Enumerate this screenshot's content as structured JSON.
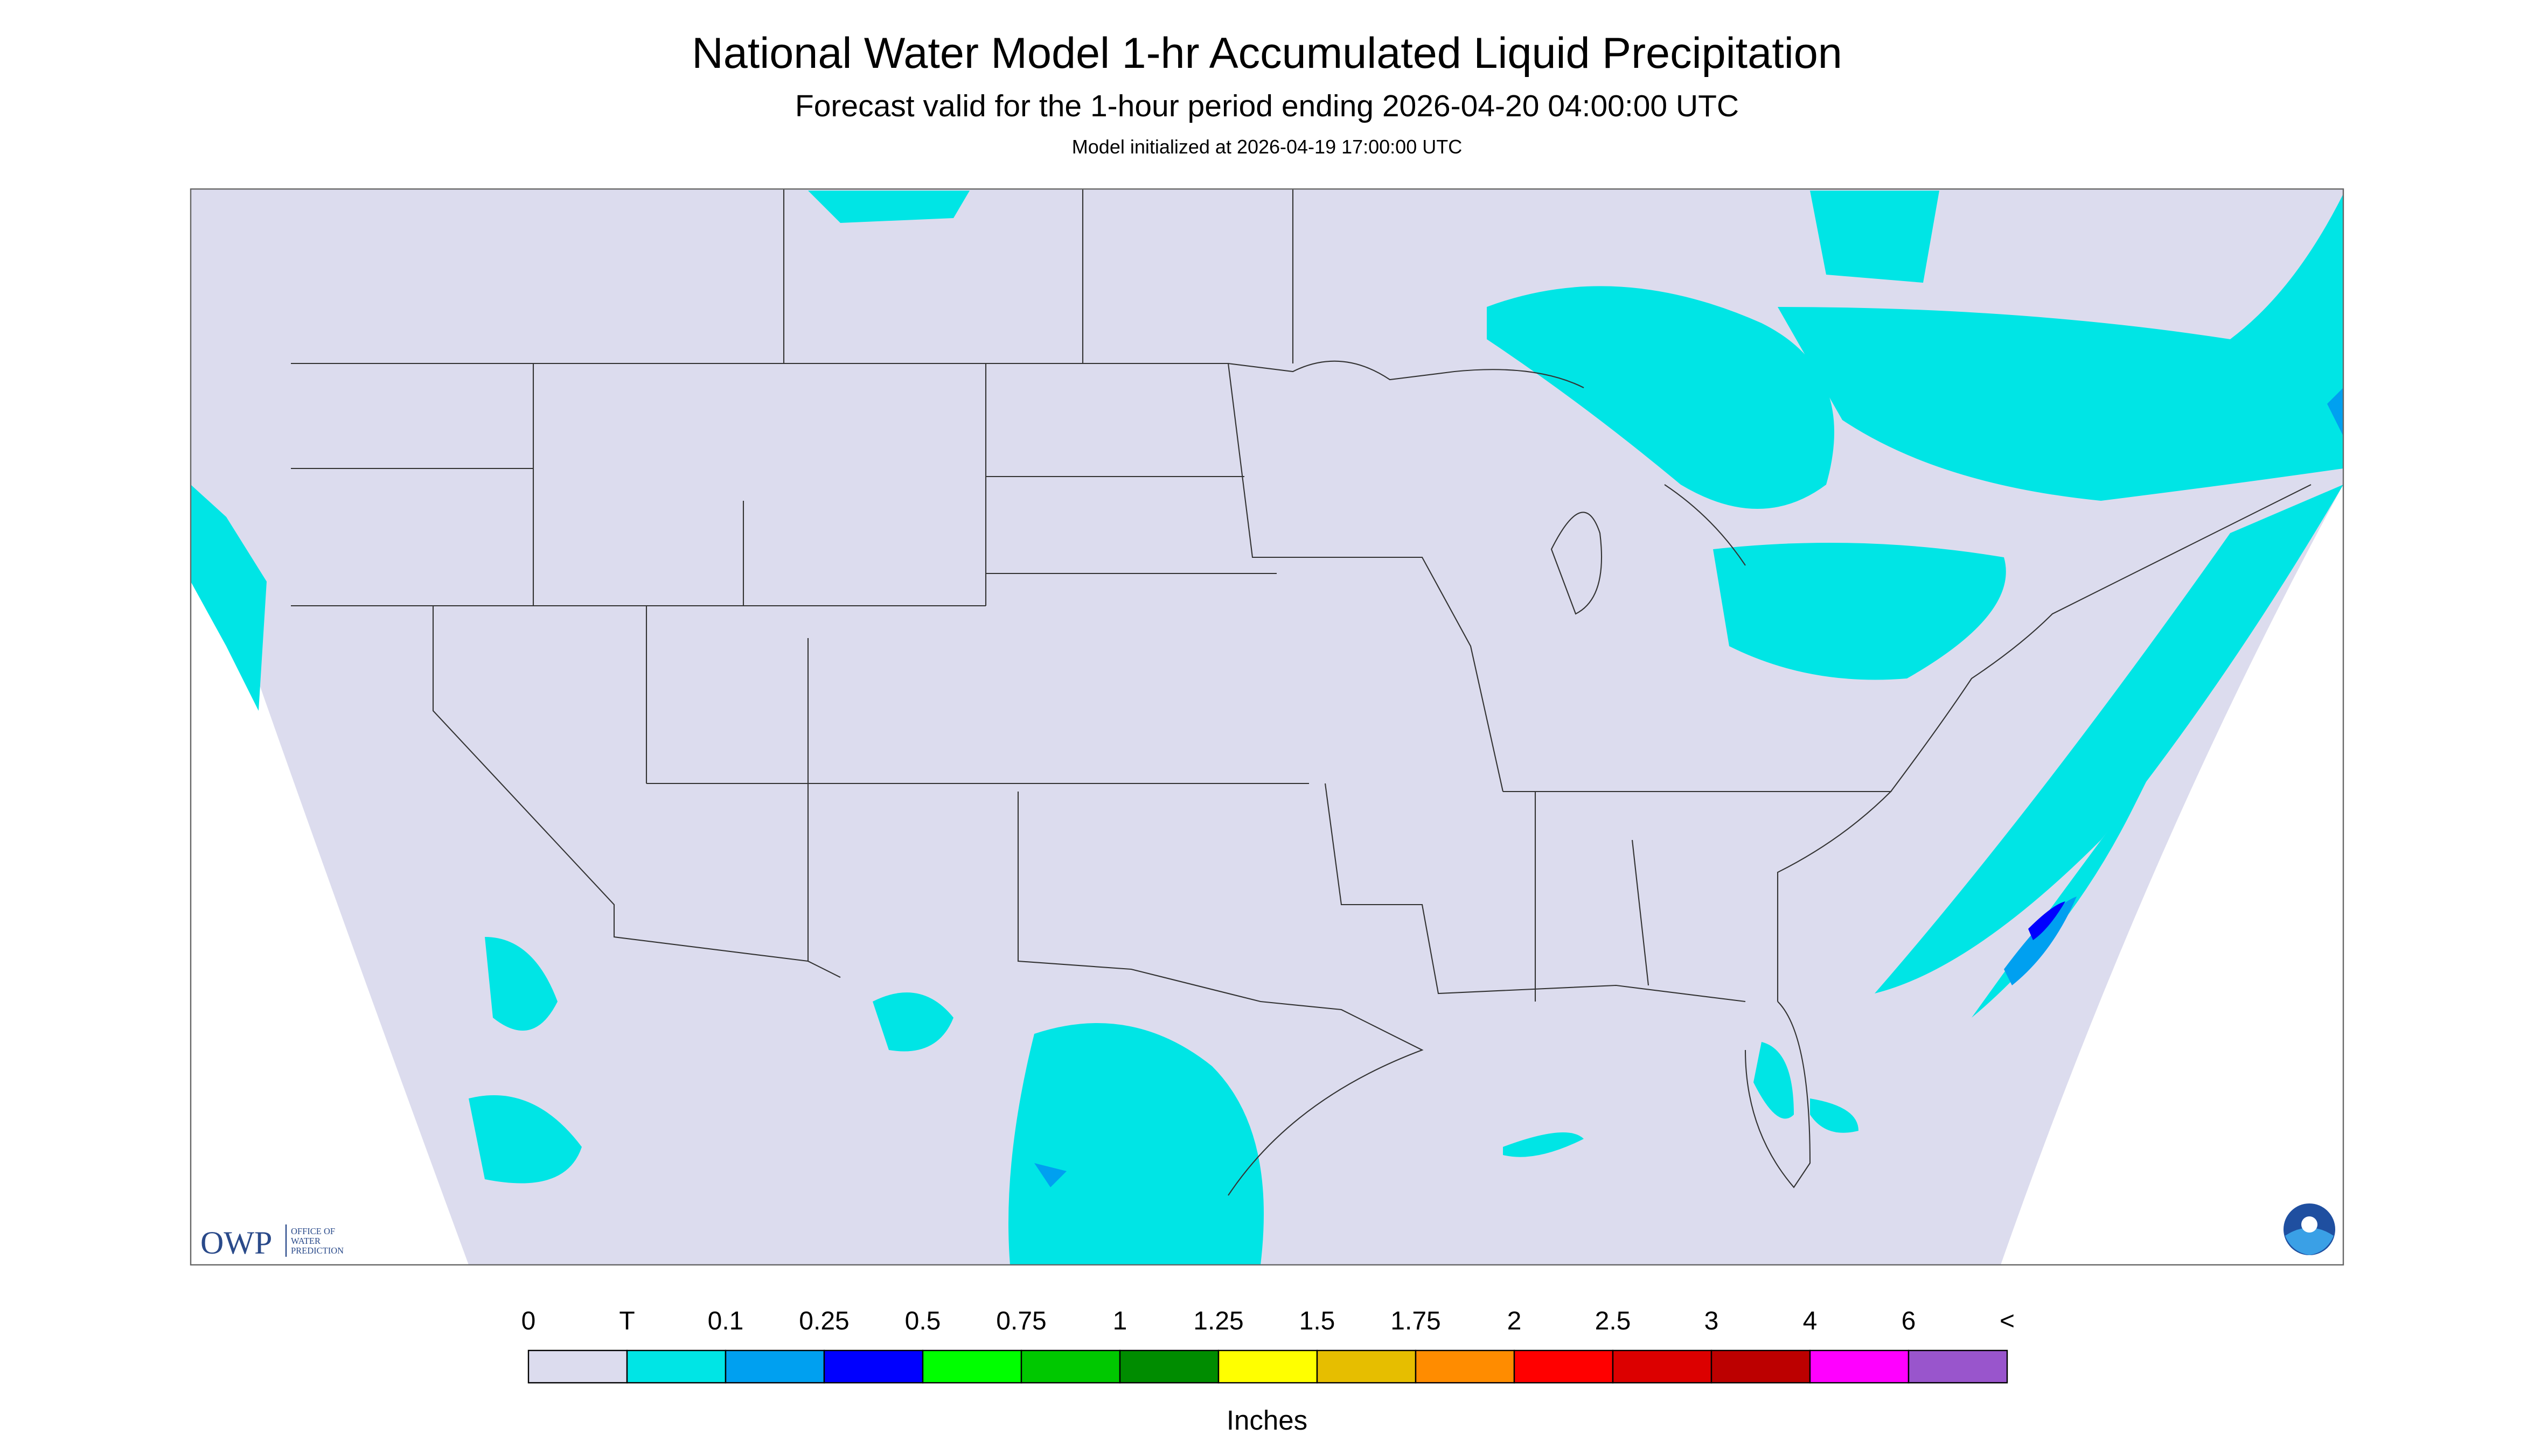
{
  "header": {
    "title": "National Water Model 1-hr Accumulated Liquid Precipitation",
    "subtitle": "Forecast valid for the 1-hour period ending 2026-04-20 04:00:00 UTC",
    "note": "Model initialized at 2026-04-19 17:00:00 UTC"
  },
  "logo": {
    "name": "OWP",
    "lines": [
      "OFFICE OF",
      "WATER",
      "PREDICTION"
    ]
  },
  "legend": {
    "labels": [
      "0",
      "T",
      "0.1",
      "0.25",
      "0.5",
      "0.75",
      "1",
      "1.25",
      "1.5",
      "1.75",
      "2",
      "2.5",
      "3",
      "4",
      "6",
      "<"
    ],
    "colors": [
      "#dcdcee",
      "#00e5e5",
      "#00a0f0",
      "#0000ff",
      "#00ff00",
      "#00c800",
      "#008c00",
      "#ffff00",
      "#e6be00",
      "#ff8c00",
      "#ff0000",
      "#dc0000",
      "#bc0000",
      "#ff00ff",
      "#9955cc"
    ],
    "unit": "Inches"
  }
}
